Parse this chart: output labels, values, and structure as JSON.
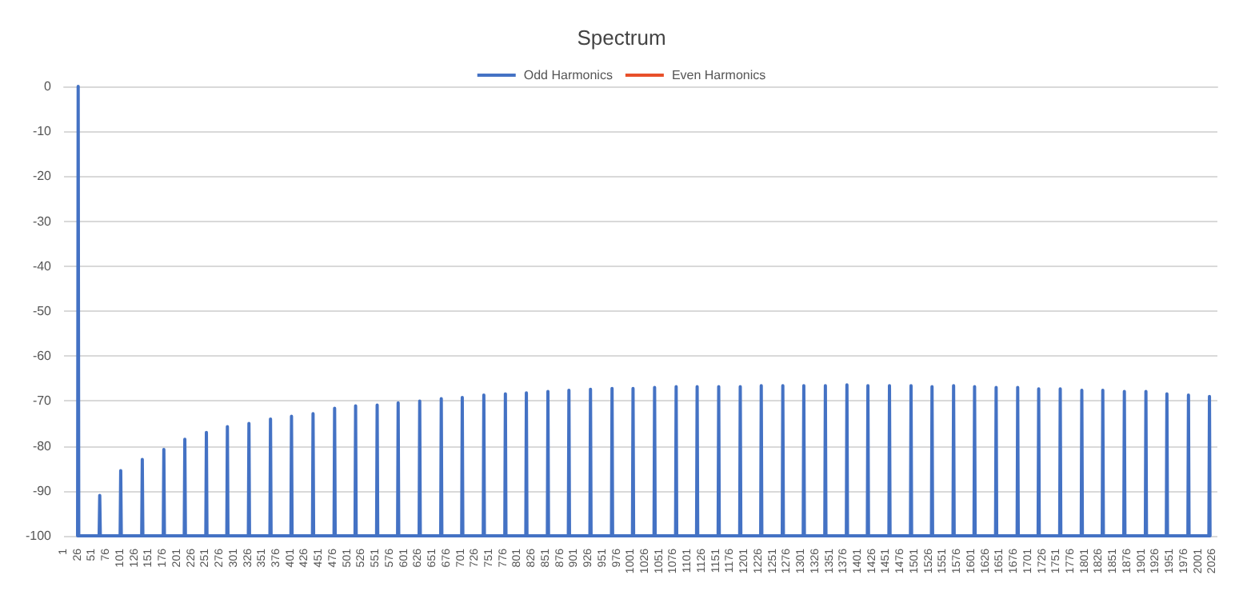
{
  "chart_data": {
    "type": "line",
    "title": "Spectrum",
    "xlim": [
      1,
      2034
    ],
    "xticks": [
      1,
      26,
      51,
      76,
      101,
      126,
      151,
      176,
      201,
      226,
      251,
      276,
      301,
      326,
      351,
      376,
      401,
      426,
      451,
      476,
      501,
      526,
      551,
      576,
      601,
      626,
      651,
      676,
      701,
      726,
      751,
      776,
      801,
      826,
      851,
      876,
      901,
      926,
      951,
      976,
      1001,
      1026,
      1051,
      1076,
      1101,
      1126,
      1151,
      1176,
      1201,
      1226,
      1251,
      1276,
      1301,
      1326,
      1351,
      1376,
      1401,
      1426,
      1451,
      1476,
      1501,
      1526,
      1551,
      1576,
      1601,
      1626,
      1651,
      1676,
      1701,
      1726,
      1751,
      1776,
      1801,
      1826,
      1851,
      1876,
      1901,
      1926,
      1951,
      1976,
      2001,
      2026
    ],
    "ylim": [
      -100,
      0
    ],
    "yticks": [
      -100,
      -90,
      -80,
      -70,
      -60,
      -50,
      -40,
      -30,
      -20,
      -10,
      0
    ],
    "grid": "y",
    "legend": "top",
    "marker": "none",
    "series": [
      {
        "name": "Odd Harmonics",
        "color": "#4472c4",
        "x": [
          25,
          26,
          27,
          63,
          64,
          65,
          100,
          101,
          102,
          138,
          139,
          140,
          176,
          177,
          178,
          213,
          214,
          215,
          251,
          252,
          253,
          288,
          289,
          290,
          326,
          327,
          328,
          364,
          365,
          366,
          401,
          402,
          403,
          439,
          440,
          441,
          477,
          478,
          479,
          514,
          515,
          516,
          552,
          553,
          554,
          589,
          590,
          591,
          627,
          628,
          629,
          665,
          666,
          667,
          702,
          703,
          704,
          740,
          741,
          742,
          778,
          779,
          780,
          815,
          816,
          817,
          853,
          854,
          855,
          890,
          891,
          892,
          928,
          929,
          930,
          966,
          967,
          968,
          1003,
          1004,
          1005,
          1041,
          1042,
          1043,
          1079,
          1080,
          1081,
          1116,
          1117,
          1118,
          1154,
          1155,
          1156,
          1192,
          1193,
          1194,
          1229,
          1230,
          1231,
          1267,
          1268,
          1269,
          1304,
          1305,
          1306,
          1342,
          1343,
          1344,
          1380,
          1381,
          1382,
          1417,
          1418,
          1419,
          1455,
          1456,
          1457,
          1493,
          1494,
          1495,
          1530,
          1531,
          1532,
          1568,
          1569,
          1570,
          1605,
          1606,
          1607,
          1643,
          1644,
          1645,
          1681,
          1682,
          1683,
          1718,
          1719,
          1720,
          1756,
          1757,
          1758,
          1794,
          1795,
          1796,
          1831,
          1832,
          1833,
          1869,
          1870,
          1871,
          1907,
          1908,
          1909,
          1944,
          1945,
          1946,
          1982,
          1983,
          1984,
          2019,
          2020,
          2021
        ],
        "values": [
          -100,
          0,
          -100,
          -100,
          -91,
          -100,
          -100,
          -85.5,
          -100,
          -100,
          -83,
          -100,
          -100,
          -80.8,
          -100,
          -100,
          -78.5,
          -100,
          -100,
          -77,
          -100,
          -100,
          -75.7,
          -100,
          -100,
          -75,
          -100,
          -100,
          -74,
          -100,
          -100,
          -73.4,
          -100,
          -100,
          -72.8,
          -100,
          -100,
          -71.6,
          -100,
          -100,
          -71.1,
          -100,
          -100,
          -70.9,
          -100,
          -100,
          -70.4,
          -100,
          -100,
          -70,
          -100,
          -100,
          -69.5,
          -100,
          -100,
          -69.2,
          -100,
          -100,
          -68.7,
          -100,
          -100,
          -68.4,
          -100,
          -100,
          -68.2,
          -100,
          -100,
          -67.9,
          -100,
          -100,
          -67.6,
          -100,
          -100,
          -67.4,
          -100,
          -100,
          -67.2,
          -100,
          -100,
          -67.2,
          -100,
          -100,
          -67,
          -100,
          -100,
          -66.8,
          -100,
          -100,
          -66.8,
          -100,
          -100,
          -66.8,
          -100,
          -100,
          -66.8,
          -100,
          -100,
          -66.6,
          -100,
          -100,
          -66.6,
          -100,
          -100,
          -66.6,
          -100,
          -100,
          -66.6,
          -100,
          -100,
          -66.4,
          -100,
          -100,
          -66.6,
          -100,
          -100,
          -66.6,
          -100,
          -100,
          -66.6,
          -100,
          -100,
          -66.8,
          -100,
          -100,
          -66.6,
          -100,
          -100,
          -66.8,
          -100,
          -100,
          -67,
          -100,
          -100,
          -67,
          -100,
          -100,
          -67.3,
          -100,
          -100,
          -67.3,
          -100,
          -100,
          -67.6,
          -100,
          -100,
          -67.6,
          -100,
          -100,
          -67.9,
          -100,
          -100,
          -67.9,
          -100,
          -100,
          -68.4,
          -100,
          -100,
          -68.7,
          -100,
          -100,
          -69,
          -100
        ]
      },
      {
        "name": "Even Harmonics",
        "color": "#e8502a"
      }
    ]
  }
}
